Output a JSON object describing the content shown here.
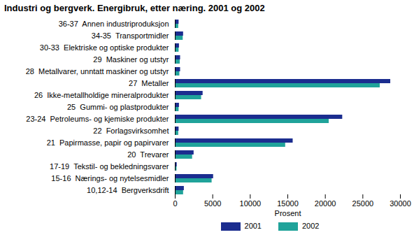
{
  "chart_data": {
    "type": "bar",
    "title": "Industri og bergverk. Energibruk, etter næring. 2001 og 2002",
    "orientation": "horizontal",
    "x_label": "Prosent",
    "categories": [
      "36-37  Annen industriproduksjon",
      "34-35  Transportmidler",
      "30-33  Elektriske og optiske produkter",
      "29  Maskiner og utstyr",
      "28  Metallvarer, unntatt maskiner og utstyr",
      "27  Metaller",
      "26  Ikke-metallholdige mineralprodukter",
      "25  Gummi- og plastprodukter",
      "23-24  Petroleums- og kjemiske produkter",
      "22  Forlagsvirksomhet",
      "21  Papirmasse, papir og papirvarer",
      "20  Trevarer",
      "17-19  Tekstil- og bekledningsvarer",
      "15-16  Nærings- og nytelsesmidler",
      "10,12-14  Bergverksdrift"
    ],
    "series": [
      {
        "name": "2001",
        "color": "#1b2d8f",
        "values": [
          500,
          1100,
          550,
          700,
          700,
          28700,
          3700,
          550,
          22300,
          500,
          15700,
          2500,
          250,
          5100,
          1200
        ]
      },
      {
        "name": "2002",
        "color": "#20a39a",
        "values": [
          450,
          1050,
          500,
          650,
          600,
          27300,
          3500,
          500,
          20500,
          450,
          14700,
          2300,
          230,
          4900,
          1100
        ]
      }
    ],
    "xlim": [
      0,
      30000
    ],
    "xticks": [
      0,
      5000,
      10000,
      15000,
      20000,
      25000,
      30000
    ],
    "grid": false,
    "legend": "bottom"
  }
}
